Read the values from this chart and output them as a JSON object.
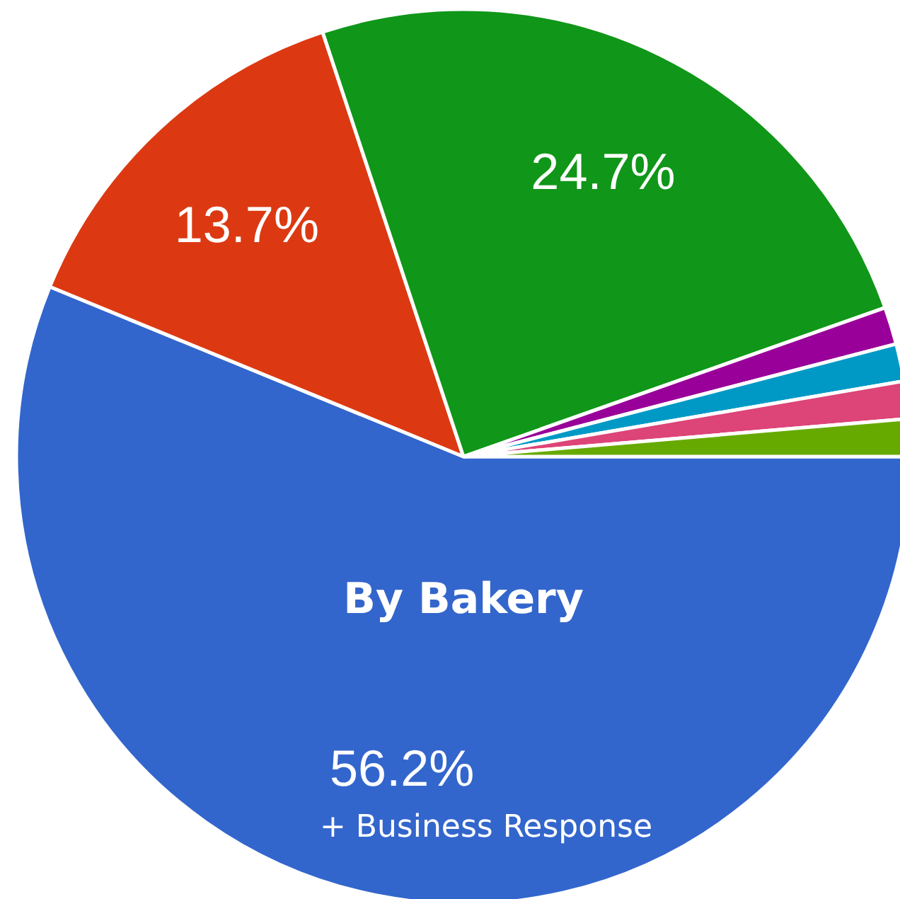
{
  "chart_data": {
    "type": "pie",
    "categories": [
      null,
      null,
      null,
      null,
      null,
      null,
      null
    ],
    "values": [
      56.2,
      13.7,
      24.7,
      1.35,
      1.35,
      1.35,
      1.35
    ],
    "colors": [
      "#3366cc",
      "#dc3912",
      "#109618",
      "#990099",
      "#0099c6",
      "#dd4477",
      "#66aa00"
    ],
    "value_labels": [
      "56.2%",
      "13.7%",
      "24.7%",
      null,
      null,
      null,
      null
    ],
    "annotations": [
      "By Bakery",
      "+ Business Response"
    ]
  }
}
